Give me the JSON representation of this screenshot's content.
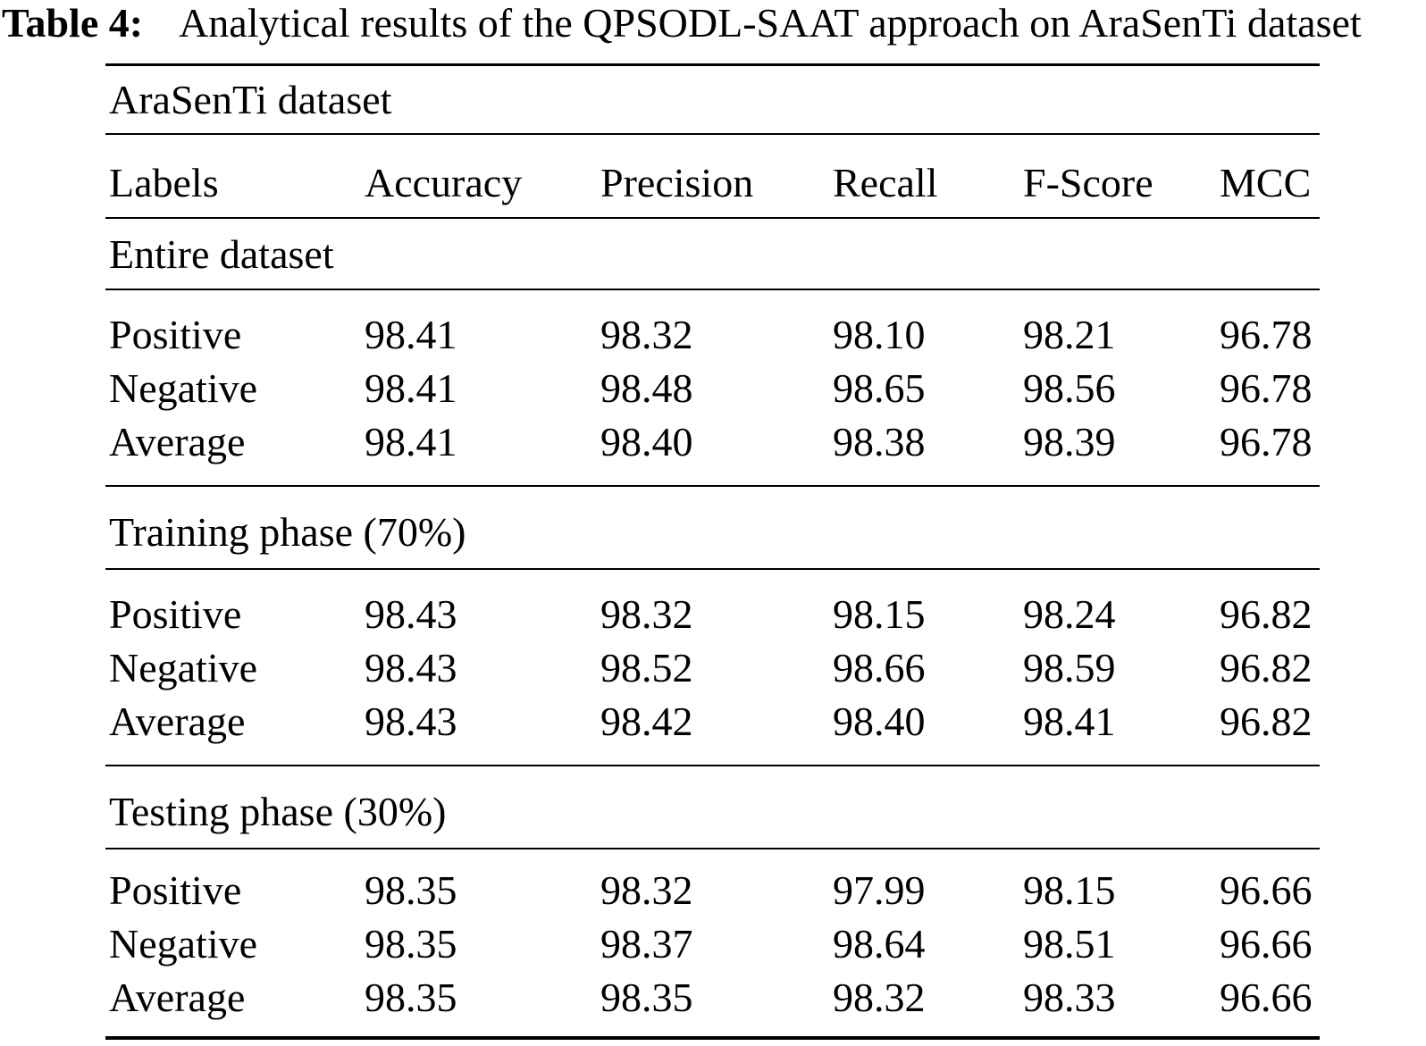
{
  "caption": {
    "label": "Table 4:",
    "text": "Analytical results of the QPSODL-SAAT approach on AraSenTi dataset"
  },
  "table": {
    "dataset_header": "AraSenTi dataset",
    "columns": [
      "Labels",
      "Accuracy",
      "Precision",
      "Recall",
      "F-Score",
      "MCC"
    ],
    "sections": [
      {
        "title": "Entire dataset",
        "rows": [
          {
            "label": "Positive",
            "values": [
              "98.41",
              "98.32",
              "98.10",
              "98.21",
              "96.78"
            ]
          },
          {
            "label": "Negative",
            "values": [
              "98.41",
              "98.48",
              "98.65",
              "98.56",
              "96.78"
            ]
          },
          {
            "label": "Average",
            "values": [
              "98.41",
              "98.40",
              "98.38",
              "98.39",
              "96.78"
            ]
          }
        ]
      },
      {
        "title": "Training phase (70%)",
        "rows": [
          {
            "label": "Positive",
            "values": [
              "98.43",
              "98.32",
              "98.15",
              "98.24",
              "96.82"
            ]
          },
          {
            "label": "Negative",
            "values": [
              "98.43",
              "98.52",
              "98.66",
              "98.59",
              "96.82"
            ]
          },
          {
            "label": "Average",
            "values": [
              "98.43",
              "98.42",
              "98.40",
              "98.41",
              "96.82"
            ]
          }
        ]
      },
      {
        "title": "Testing phase (30%)",
        "rows": [
          {
            "label": "Positive",
            "values": [
              "98.35",
              "98.32",
              "97.99",
              "98.15",
              "96.66"
            ]
          },
          {
            "label": "Negative",
            "values": [
              "98.35",
              "98.37",
              "98.64",
              "98.51",
              "96.66"
            ]
          },
          {
            "label": "Average",
            "values": [
              "98.35",
              "98.35",
              "98.32",
              "98.33",
              "96.66"
            ]
          }
        ]
      }
    ]
  },
  "colors": {
    "text": "#000000",
    "background": "#ffffff",
    "rule": "#000000"
  }
}
